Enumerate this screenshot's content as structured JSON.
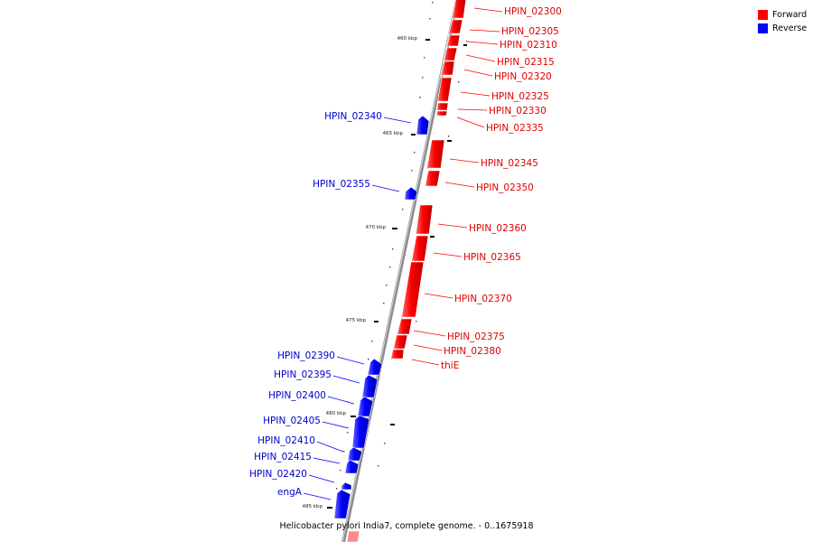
{
  "caption": "Helicobacter pylori India7, complete genome. - 0..1675918",
  "legend": [
    {
      "label": "Forward",
      "color": "#ff0000"
    },
    {
      "label": "Reverse",
      "color": "#0000ff"
    }
  ],
  "scale_labels": [
    "460 kbp",
    "465 kbp",
    "470 kbp",
    "475 kbp",
    "480 kbp",
    "485 kbp"
  ],
  "genes": [
    {
      "name": "HPIN_02300",
      "strand": "forward"
    },
    {
      "name": "HPIN_02305",
      "strand": "forward"
    },
    {
      "name": "HPIN_02310",
      "strand": "forward"
    },
    {
      "name": "HPIN_02315",
      "strand": "forward"
    },
    {
      "name": "HPIN_02320",
      "strand": "forward"
    },
    {
      "name": "HPIN_02325",
      "strand": "forward"
    },
    {
      "name": "HPIN_02330",
      "strand": "forward"
    },
    {
      "name": "HPIN_02335",
      "strand": "forward"
    },
    {
      "name": "HPIN_02340",
      "strand": "reverse"
    },
    {
      "name": "HPIN_02345",
      "strand": "forward"
    },
    {
      "name": "HPIN_02350",
      "strand": "forward"
    },
    {
      "name": "HPIN_02355",
      "strand": "reverse"
    },
    {
      "name": "HPIN_02360",
      "strand": "forward"
    },
    {
      "name": "HPIN_02365",
      "strand": "forward"
    },
    {
      "name": "HPIN_02370",
      "strand": "forward"
    },
    {
      "name": "HPIN_02375",
      "strand": "forward"
    },
    {
      "name": "HPIN_02380",
      "strand": "forward"
    },
    {
      "name": "thiE",
      "strand": "forward"
    },
    {
      "name": "HPIN_02390",
      "strand": "reverse"
    },
    {
      "name": "HPIN_02395",
      "strand": "reverse"
    },
    {
      "name": "HPIN_02400",
      "strand": "reverse"
    },
    {
      "name": "HPIN_02405",
      "strand": "reverse"
    },
    {
      "name": "HPIN_02410",
      "strand": "reverse"
    },
    {
      "name": "HPIN_02415",
      "strand": "reverse"
    },
    {
      "name": "HPIN_02420",
      "strand": "reverse"
    },
    {
      "name": "engA",
      "strand": "reverse"
    }
  ]
}
